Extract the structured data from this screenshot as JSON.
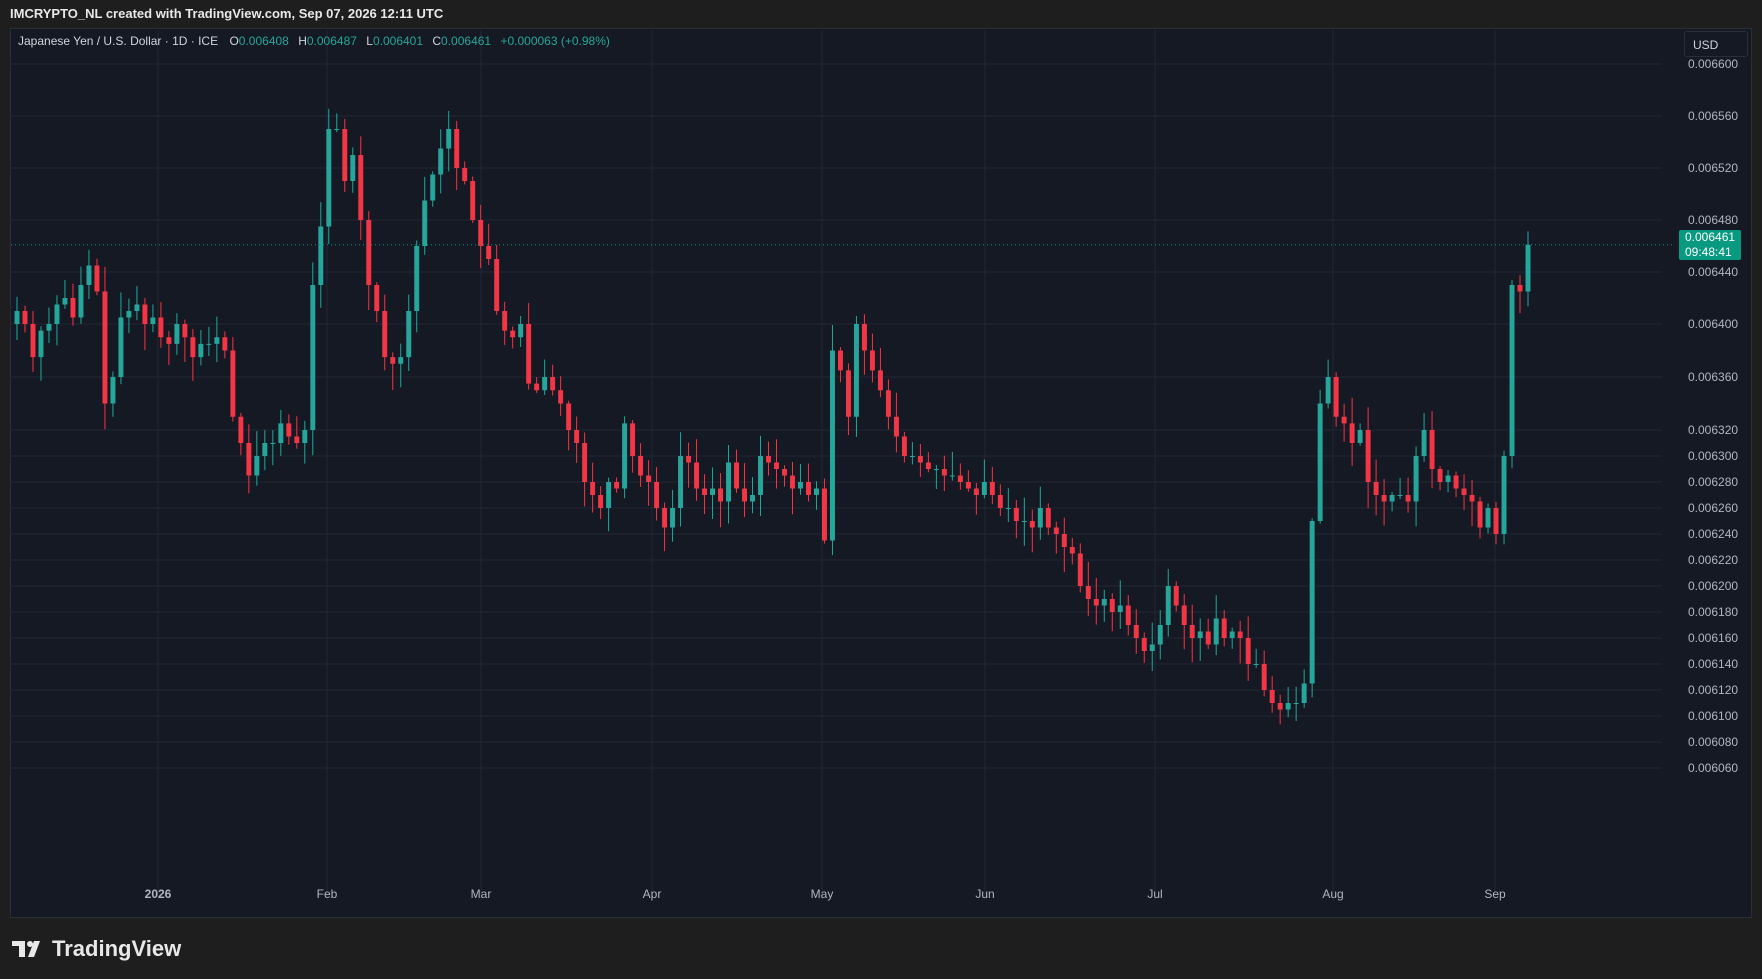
{
  "header": {
    "attribution": "IMCRYPTO_NL created with TradingView.com, Sep 07, 2026 12:11 UTC"
  },
  "legend": {
    "symbol": "Japanese Yen / U.S. Dollar · 1D · ICE",
    "o_label": "O",
    "o_value": "0.006408",
    "h_label": "H",
    "h_value": "0.006487",
    "l_label": "L",
    "l_value": "0.006401",
    "c_label": "C",
    "c_value": "0.006461",
    "change": "+0.000063 (+0.98%)"
  },
  "currency_button": "USD",
  "last_price": {
    "price": "0.006461",
    "countdown": "09:48:41"
  },
  "brand": {
    "name": "TradingView"
  },
  "colors": {
    "up": "#26a69a",
    "down": "#f23645",
    "background": "#151924",
    "grid": "#222633",
    "axis_text": "#b2b5be",
    "price_tag": "#089981"
  },
  "chart_data": {
    "type": "candlestick",
    "interval": "1D",
    "x_tick_labels": [
      "2026",
      "Feb",
      "Mar",
      "Apr",
      "May",
      "Jun",
      "Jul",
      "Aug",
      "Sep"
    ],
    "y_tick_labels": [
      "0.006600",
      "0.006560",
      "0.006520",
      "0.006480",
      "0.006440",
      "0.006400",
      "0.006360",
      "0.006320",
      "0.006300",
      "0.006280",
      "0.006260",
      "0.006240",
      "0.006220",
      "0.006200",
      "0.006180",
      "0.006160",
      "0.006140",
      "0.006120",
      "0.006100",
      "0.006080",
      "0.006060"
    ],
    "close_series": [
      0.00641,
      0.0064,
      0.006375,
      0.006395,
      0.0064,
      0.006415,
      0.00642,
      0.006405,
      0.00643,
      0.006445,
      0.006425,
      0.00634,
      0.00636,
      0.006405,
      0.00641,
      0.006415,
      0.0064,
      0.006405,
      0.00639,
      0.006385,
      0.0064,
      0.00639,
      0.006375,
      0.006385,
      0.006385,
      0.00639,
      0.00638,
      0.00633,
      0.00631,
      0.006285,
      0.0063,
      0.00631,
      0.00631,
      0.006325,
      0.006315,
      0.00631,
      0.00632,
      0.00643,
      0.006475,
      0.00655,
      0.00655,
      0.00651,
      0.00653,
      0.00648,
      0.00643,
      0.00641,
      0.006375,
      0.00637,
      0.006375,
      0.00641,
      0.00646,
      0.006495,
      0.006515,
      0.006535,
      0.00655,
      0.00652,
      0.00651,
      0.00648,
      0.00646,
      0.00645,
      0.00641,
      0.006395,
      0.00639,
      0.0064,
      0.006355,
      0.00635,
      0.00636,
      0.00635,
      0.00634,
      0.00632,
      0.00631,
      0.00628,
      0.00627,
      0.00626,
      0.00628,
      0.006275,
      0.006325,
      0.0063,
      0.006285,
      0.00628,
      0.00626,
      0.006245,
      0.00626,
      0.0063,
      0.006295,
      0.006275,
      0.00627,
      0.006275,
      0.006265,
      0.006295,
      0.006275,
      0.006265,
      0.00627,
      0.0063,
      0.006295,
      0.00629,
      0.006285,
      0.006275,
      0.00628,
      0.00627,
      0.006275,
      0.006235,
      0.00638,
      0.006365,
      0.00633,
      0.0064,
      0.00638,
      0.006365,
      0.00635,
      0.00633,
      0.006315,
      0.0063,
      0.0063,
      0.006295,
      0.00629,
      0.00629,
      0.006285,
      0.006285,
      0.00628,
      0.006275,
      0.00627,
      0.00628,
      0.00627,
      0.00626,
      0.00626,
      0.00625,
      0.00625,
      0.006245,
      0.00626,
      0.006245,
      0.00624,
      0.00623,
      0.006225,
      0.0062,
      0.00619,
      0.006185,
      0.00619,
      0.00618,
      0.006185,
      0.00617,
      0.00616,
      0.00615,
      0.006155,
      0.00617,
      0.0062,
      0.006185,
      0.00617,
      0.00616,
      0.006165,
      0.006155,
      0.006175,
      0.00616,
      0.006165,
      0.00616,
      0.00614,
      0.00614,
      0.00612,
      0.00611,
      0.006105,
      0.00611,
      0.00611,
      0.006125,
      0.00625,
      0.00634,
      0.00636,
      0.00633,
      0.006325,
      0.00631,
      0.00632,
      0.00628,
      0.00627,
      0.006265,
      0.00627,
      0.00627,
      0.006265,
      0.0063,
      0.00632,
      0.00629,
      0.00628,
      0.006285,
      0.006275,
      0.00627,
      0.006265,
      0.006245,
      0.00626,
      0.00624,
      0.0063,
      0.00643,
      0.006425,
      0.006461
    ]
  }
}
